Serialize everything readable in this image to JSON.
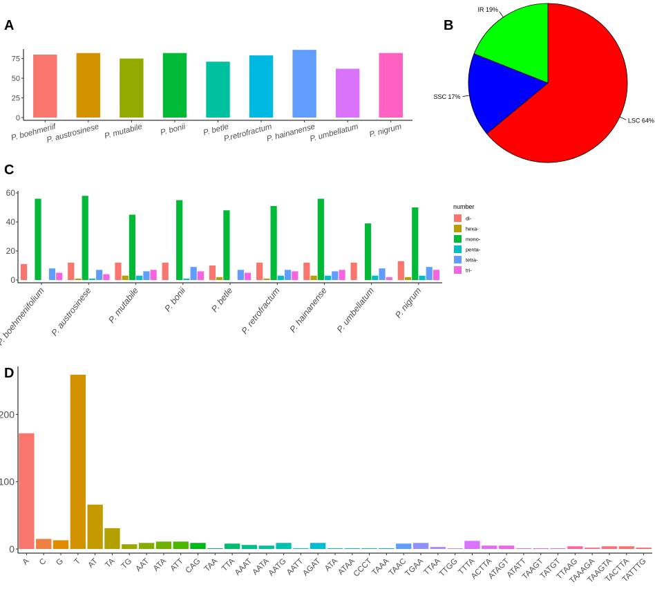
{
  "panels": {
    "a": "A",
    "b": "B",
    "c": "C",
    "d": "D"
  },
  "chart_data": [
    {
      "id": "A",
      "type": "bar",
      "title": "",
      "xlabel": "",
      "ylabel": "",
      "categories": [
        "P. boehmeriif",
        "P. austrosinese",
        "P. mutabile",
        "P. bonii",
        "P. betle",
        "P.retrofractum",
        "P. hainanense",
        "P. umbellatum",
        "P. nigrum"
      ],
      "values": [
        80,
        82,
        75,
        82,
        71,
        79,
        86,
        62,
        82
      ],
      "colors": [
        "#F8766D",
        "#D39200",
        "#93AA00",
        "#00BA38",
        "#00C19F",
        "#00B9E3",
        "#619CFF",
        "#DB72FB",
        "#FF61C3"
      ],
      "yticks": [
        0,
        25,
        50,
        75
      ],
      "ylim": [
        0,
        87
      ],
      "grid": false
    },
    {
      "id": "B",
      "type": "pie",
      "title": "",
      "slices": [
        {
          "label": "LSC 64%",
          "value": 64,
          "color": "#FF0000"
        },
        {
          "label": "SSC 17%",
          "value": 17,
          "color": "#0000FF"
        },
        {
          "label": "IR 19%",
          "value": 19,
          "color": "#00FF00"
        }
      ]
    },
    {
      "id": "C",
      "type": "bar",
      "grouped": true,
      "title": "",
      "xlabel": "",
      "ylabel": "",
      "categories": [
        "P. boehmeriifolium",
        "P. austrosinese",
        "P. mutabile",
        "P. bonii",
        "P. betle",
        "P. retrofractum",
        "P. hainanense",
        "P. umbellatum",
        "P. nigrum"
      ],
      "series": [
        {
          "name": "di-",
          "color": "#F8766D",
          "values": [
            11,
            12,
            12,
            12,
            10,
            12,
            12,
            12,
            13
          ]
        },
        {
          "name": "hexa-",
          "color": "#B79F00",
          "values": [
            0,
            1,
            3,
            0,
            2,
            1,
            3,
            0,
            2
          ]
        },
        {
          "name": "mono-",
          "color": "#00BA38",
          "values": [
            56,
            58,
            45,
            55,
            48,
            51,
            56,
            39,
            50
          ]
        },
        {
          "name": "penta-",
          "color": "#00BFC4",
          "values": [
            0,
            1,
            3,
            1,
            0,
            3,
            3,
            3,
            3
          ]
        },
        {
          "name": "tetra-",
          "color": "#619CFF",
          "values": [
            8,
            7,
            6,
            9,
            7,
            7,
            6,
            8,
            9
          ]
        },
        {
          "name": "tri-",
          "color": "#F564E3",
          "values": [
            5,
            4,
            7,
            6,
            5,
            6,
            7,
            2,
            7
          ]
        }
      ],
      "legend": {
        "title": "number",
        "position": "right"
      },
      "yticks": [
        0,
        20,
        40,
        60
      ],
      "ylim": [
        0,
        60
      ],
      "grid": false
    },
    {
      "id": "D",
      "type": "bar",
      "title": "",
      "xlabel": "",
      "ylabel": "",
      "categories": [
        "A",
        "C",
        "G",
        "T",
        "AT",
        "TA",
        "TG",
        "AAT",
        "ATA",
        "ATT",
        "CAG",
        "TAA",
        "TTA",
        "AAAT",
        "AATA",
        "AATG",
        "AATT",
        "AGAT",
        "ATA",
        "ATAA",
        "CCCT",
        "TAAA",
        "TAAC",
        "TGAA",
        "TTAA",
        "TTGG",
        "TTTA",
        "ACTTA",
        "ATAGT",
        "ATATT",
        "TAAGT",
        "TATGT",
        "TTAAG",
        "TAAAGA",
        "TAAGTA",
        "TACTTA",
        "TATTTG"
      ],
      "values": [
        172,
        15,
        13,
        259,
        66,
        31,
        7,
        9,
        11,
        11,
        9,
        1,
        8,
        6,
        5,
        9,
        1,
        9,
        1,
        1,
        1,
        1,
        8,
        9,
        3,
        1,
        12,
        5,
        5,
        1,
        1,
        1,
        4,
        2,
        4,
        4,
        2
      ],
      "colors": [
        "#F8766D",
        "#EE8043",
        "#E28A00",
        "#D39200",
        "#C49A00",
        "#B2A100",
        "#9EA700",
        "#88AC00",
        "#6EB100",
        "#4BB500",
        "#00B816",
        "#00BB4E",
        "#00BD6D",
        "#00BF85",
        "#00C19A",
        "#00C1AD",
        "#00C0BE",
        "#00BDCF",
        "#00B9DE",
        "#00B4EB",
        "#00ADF5",
        "#00A5FF",
        "#619CFF",
        "#8F91FF",
        "#AE87FF",
        "#C77CFF",
        "#D874FD",
        "#E76BF3",
        "#F263E7",
        "#FB61D7",
        "#FF61C5",
        "#FF63B1",
        "#FF689D",
        "#FF6C88",
        "#FD6F7A",
        "#F9726F",
        "#F47168"
      ],
      "yticks": [
        0,
        100,
        200
      ],
      "ylim": [
        0,
        260
      ],
      "grid": false
    }
  ]
}
